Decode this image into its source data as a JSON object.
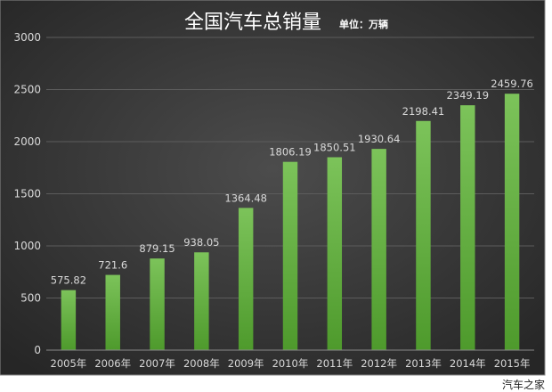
{
  "chart_data": {
    "type": "bar",
    "title": "全国汽车总销量",
    "subtitle": "单位：万辆",
    "categories": [
      "2005年",
      "2006年",
      "2007年",
      "2008年",
      "2009年",
      "2010年",
      "2011年",
      "2012年",
      "2013年",
      "2014年",
      "2015年"
    ],
    "values": [
      575.82,
      721.6,
      879.15,
      938.05,
      1364.48,
      1806.19,
      1850.51,
      1930.64,
      2198.41,
      2349.19,
      2459.76
    ],
    "data_labels": [
      "575.82",
      "721.6",
      "879.15",
      "938.05",
      "1364.48",
      "1806.19",
      "1850.51",
      "1930.64",
      "2198.41",
      "2349.19",
      "2459.76"
    ],
    "yticks": [
      "0",
      "500",
      "1000",
      "1500",
      "2000",
      "2500",
      "3000"
    ],
    "ylim": [
      0,
      3000
    ],
    "grid": true,
    "legend": "none",
    "colors": {
      "bar_top": "#7cc35a",
      "bar_bottom": "#4e9a2c",
      "bg_inner": "#4a4a4a",
      "bg_outer": "#2a2a2a",
      "grid": "#5c5c5c"
    }
  },
  "watermark": "汽车之家"
}
